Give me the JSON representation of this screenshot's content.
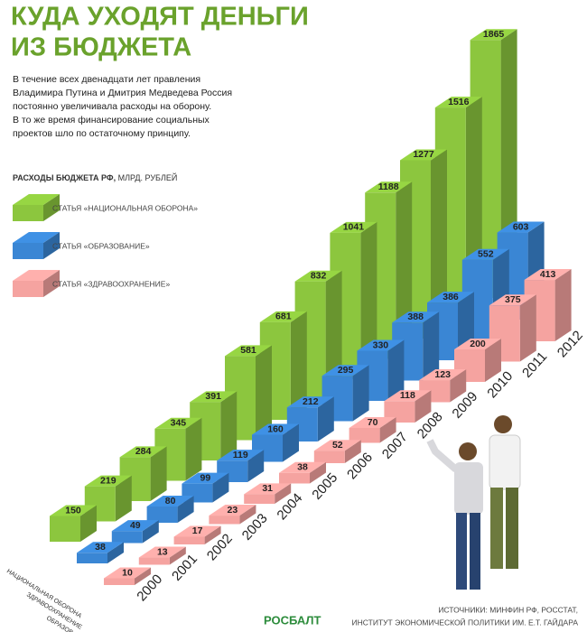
{
  "chart_data": {
    "type": "bar3d",
    "title": [
      "КУДА УХОДЯТ ДЕНЬГИ",
      "ИЗ БЮДЖЕТА"
    ],
    "subtitle": [
      "В течение всех двенадцати лет правления",
      "Владимира Путина и Дмитрия Медведева Россия",
      "постоянно увеличивала расходы на оборону.",
      "В то же время финансирование социальных",
      "проектов шло по остаточному принципу."
    ],
    "legend_title": "РАСХОДЫ БЮДЖЕТА РФ,",
    "unit": "МЛРД. РУБЛЕЙ",
    "categories": [
      "2000",
      "2001",
      "2002",
      "2003",
      "2004",
      "2005",
      "2006",
      "2007",
      "2008",
      "2009",
      "2010",
      "2011",
      "2012"
    ],
    "series": [
      {
        "name": "СТАТЬЯ «НАЦИОНАЛЬНАЯ ОБОРОНА»",
        "color": "#8cc63e",
        "values": [
          150,
          219,
          284,
          345,
          391,
          581,
          681,
          832,
          1041,
          1188,
          1277,
          1516,
          1865
        ]
      },
      {
        "name": "СТАТЬЯ «ОБРАЗОВАНИЕ»",
        "color": "#3a86d4",
        "values": [
          38,
          49,
          80,
          99,
          119,
          160,
          212,
          295,
          330,
          388,
          386,
          552,
          603
        ]
      },
      {
        "name": "СТАТЬЯ «ЗДРАВООХРАНЕНИЕ»",
        "color": "#f5a3a0",
        "values": [
          10,
          13,
          17,
          23,
          31,
          38,
          52,
          70,
          118,
          123,
          200,
          375,
          413
        ]
      }
    ],
    "row_labels": [
      "НАЦИОНАЛЬНАЯ ОБОРОНА",
      "ЗДРАВООХРАНЕНИЕ",
      "ОБРАЗОВАНИЕ"
    ],
    "sources": [
      "ИСТОЧНИКИ: МИНФИН РФ, РОССТАТ,",
      "ИНСТИТУТ ЭКОНОМИЧЕСКОЙ ПОЛИТИКИ ИМ. Е.Т. ГАЙДАРА"
    ],
    "logo": "РОСБАЛТ"
  }
}
